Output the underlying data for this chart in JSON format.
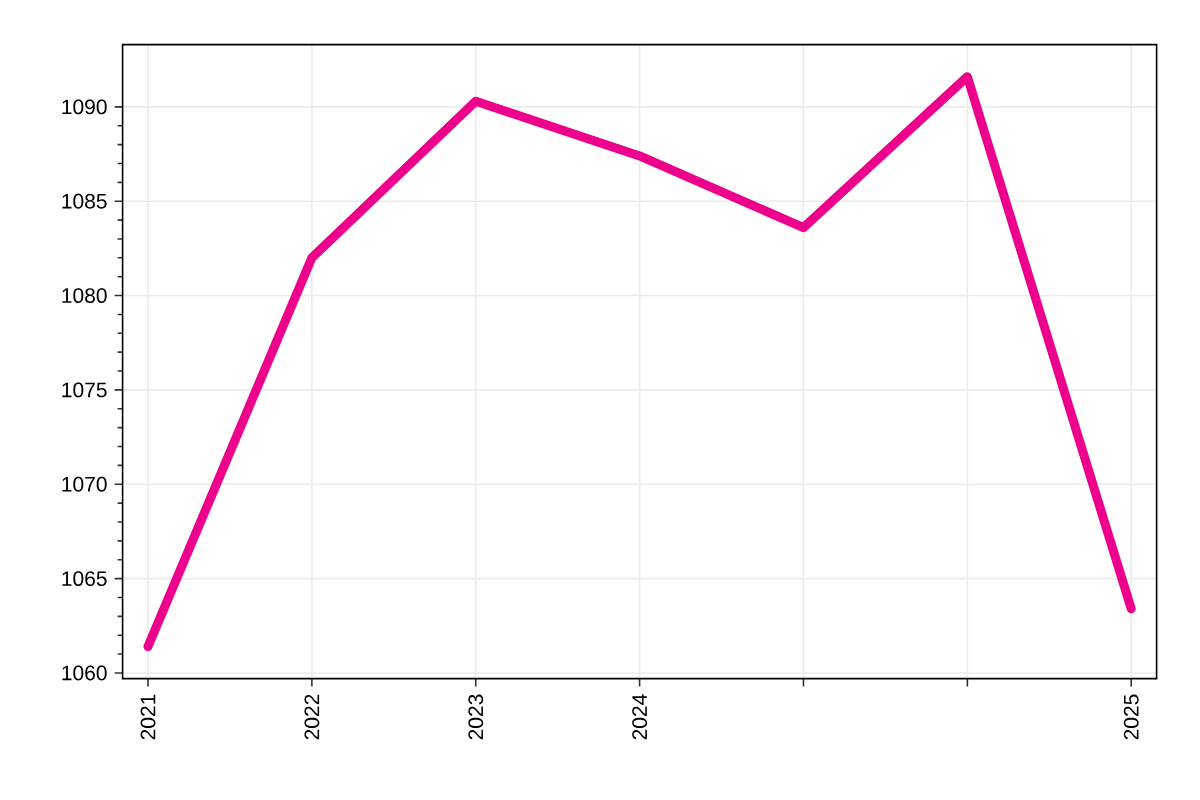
{
  "chart_data": {
    "type": "line",
    "categories": [
      "2021",
      "2022",
      "2023",
      "2024",
      null,
      null,
      "2025"
    ],
    "series": [
      {
        "color": "#ec008c",
        "values": [
          1061.4,
          1082.0,
          1090.3,
          1087.4,
          1083.6,
          1091.6,
          1063.4
        ]
      }
    ],
    "ylim": [
      1059.7,
      1093.3
    ],
    "yticks": [
      1060,
      1065,
      1070,
      1075,
      1080,
      1085,
      1090
    ],
    "grid": true,
    "marker": "none",
    "line_style": "solid"
  }
}
